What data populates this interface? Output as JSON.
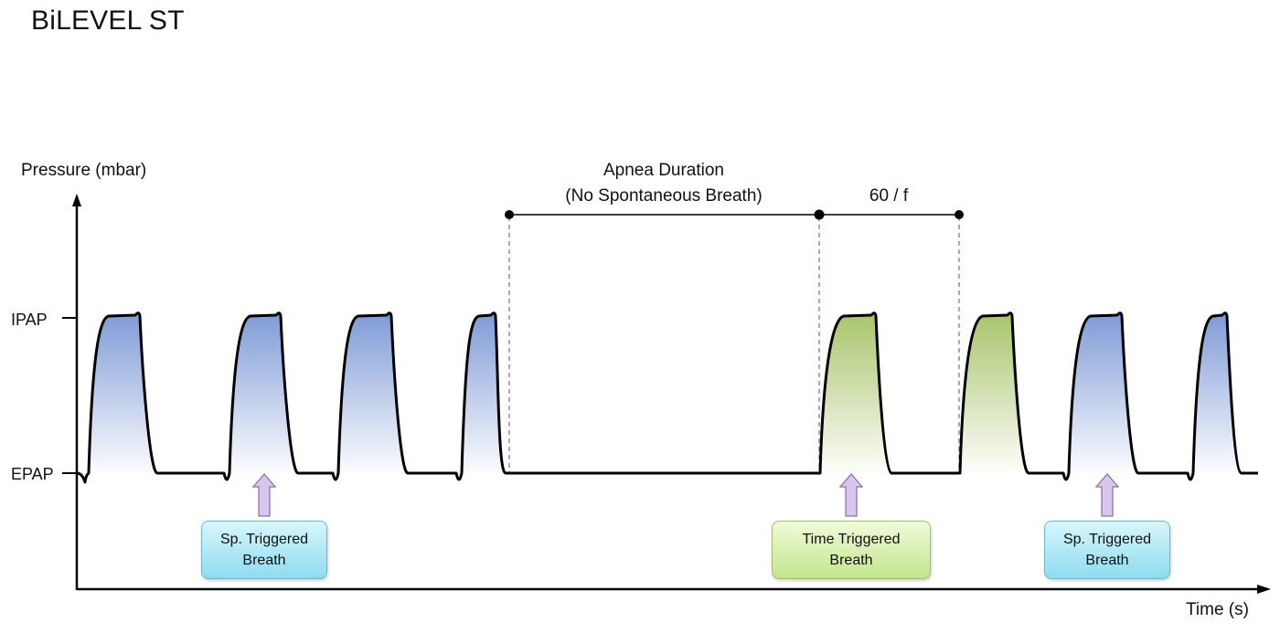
{
  "title": "BiLEVEL ST",
  "axes": {
    "y_label": "Pressure (mbar)",
    "x_label": "Time (s)",
    "ipap_label": "IPAP",
    "epap_label": "EPAP"
  },
  "annotations": {
    "apnea_line1": "Apnea Duration",
    "apnea_line2": "(No Spontaneous Breath)",
    "interval_label": "60 / f"
  },
  "callouts": [
    {
      "line1": "Sp. Triggered",
      "line2": "Breath",
      "kind": "spontaneous"
    },
    {
      "line1": "Time Triggered",
      "line2": "Breath",
      "kind": "timed"
    },
    {
      "line1": "Sp. Triggered",
      "line2": "Breath",
      "kind": "spontaneous"
    }
  ],
  "breaths": [
    {
      "kind": "spontaneous"
    },
    {
      "kind": "spontaneous"
    },
    {
      "kind": "spontaneous"
    },
    {
      "kind": "spontaneous"
    },
    {
      "kind": "timed"
    },
    {
      "kind": "timed"
    },
    {
      "kind": "spontaneous"
    },
    {
      "kind": "spontaneous"
    }
  ],
  "colors": {
    "spontaneous_fill": "#7f9bd6",
    "timed_fill": "#a8c46a",
    "arrow_fill": "#d9c6ec",
    "arrow_stroke": "#8a72b0",
    "dash": "#6a6f9a"
  }
}
